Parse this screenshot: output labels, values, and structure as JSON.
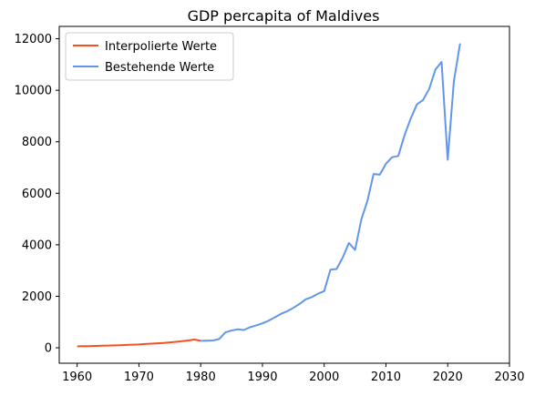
{
  "chart_data": {
    "type": "line",
    "title": "GDP percapita of Maldives",
    "xlabel": "",
    "ylabel": "",
    "xlim": [
      1962.2,
      2030
    ],
    "ylim": [
      -500,
      12500
    ],
    "xlim_real": [
      1957.1,
      2030
    ],
    "ylim_real": [
      -600,
      12480
    ],
    "x_ticks": [
      1960,
      1970,
      1980,
      1990,
      2000,
      2010,
      2020,
      2030
    ],
    "y_ticks": [
      0,
      2000,
      4000,
      6000,
      8000,
      10000,
      12000
    ],
    "grid": false,
    "legend_position": "top-left",
    "series": [
      {
        "name": "Interpolierte Werte",
        "color": "#f4511e",
        "x": [
          1960,
          1961,
          1962,
          1963,
          1964,
          1965,
          1966,
          1967,
          1968,
          1969,
          1970,
          1971,
          1972,
          1973,
          1974,
          1975,
          1976,
          1977,
          1978,
          1979,
          1980
        ],
        "values": [
          55,
          60,
          65,
          72,
          78,
          85,
          93,
          100,
          110,
          120,
          130,
          145,
          160,
          175,
          190,
          210,
          230,
          255,
          285,
          320,
          270
        ]
      },
      {
        "name": "Bestehende Werte",
        "color": "#6495ed",
        "x": [
          1980,
          1981,
          1982,
          1983,
          1984,
          1985,
          1986,
          1987,
          1988,
          1989,
          1990,
          1991,
          1992,
          1993,
          1994,
          1995,
          1996,
          1997,
          1998,
          1999,
          2000,
          2001,
          2002,
          2003,
          2004,
          2005,
          2006,
          2007,
          2008,
          2009,
          2010,
          2011,
          2012,
          2013,
          2014,
          2015,
          2016,
          2017,
          2018,
          2019,
          2020,
          2021,
          2022
        ],
        "values": [
          270,
          275,
          285,
          340,
          600,
          670,
          720,
          690,
          800,
          870,
          950,
          1050,
          1180,
          1320,
          1420,
          1550,
          1700,
          1880,
          1970,
          2100,
          2200,
          3030,
          3060,
          3500,
          4070,
          3800,
          4980,
          5700,
          6750,
          6720,
          7150,
          7400,
          7450,
          8250,
          8900,
          9450,
          9620,
          10050,
          10800,
          11100,
          7300,
          10350,
          11820
        ]
      }
    ]
  }
}
